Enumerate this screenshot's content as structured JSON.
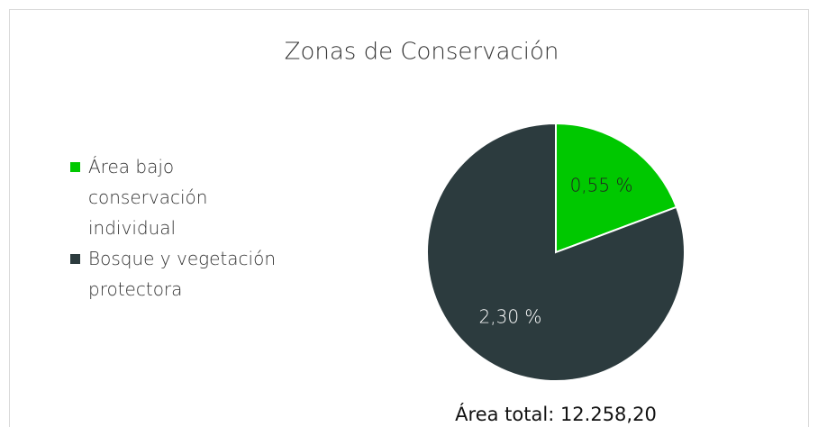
{
  "chart_data": {
    "type": "pie",
    "title": "Zonas de Conservación",
    "categories": [
      "Área bajo conservación individual",
      "Bosque y vegetación protectora"
    ],
    "values": [
      0.55,
      2.3
    ],
    "value_labels": [
      "0,55 %",
      "2,30 %"
    ],
    "colors": [
      "#00c800",
      "#2c3b3e"
    ],
    "legend": "left",
    "annotation": "Área total: 12.258,20"
  }
}
